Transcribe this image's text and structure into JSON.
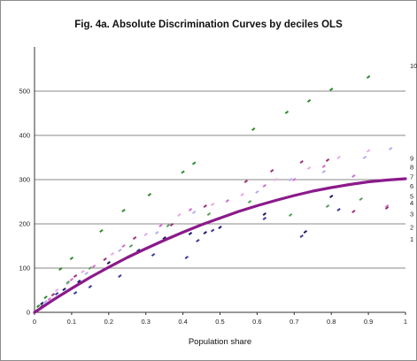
{
  "chart_data": {
    "type": "scatter",
    "title": "Fig. 4a. Absolute Discrimination Curves by deciles OLS",
    "xlabel": "Population share",
    "ylabel": "",
    "xlim": [
      0,
      1
    ],
    "ylim": [
      0,
      600
    ],
    "x_ticks": [
      "0",
      "0.1",
      "0.2",
      "0.3",
      "0.4",
      "0.5",
      "0.6",
      "0.7",
      "0.8",
      "0.9",
      "1"
    ],
    "y_ticks": [
      "0",
      "100",
      "200",
      "300",
      "400",
      "500"
    ],
    "grid": "horizontal",
    "curve_labels": [
      {
        "label": "10",
        "y": 557
      },
      {
        "label": "9",
        "y": 348
      },
      {
        "label": "8",
        "y": 328
      },
      {
        "label": "7",
        "y": 306
      },
      {
        "label": "6",
        "y": 285
      },
      {
        "label": "5",
        "y": 262
      },
      {
        "label": "4",
        "y": 247
      },
      {
        "label": "3",
        "y": 222
      },
      {
        "label": "2",
        "y": 192
      },
      {
        "label": "1",
        "y": 165
      }
    ],
    "average_curve": {
      "color": "#8b1a8b",
      "x": [
        0,
        0.05,
        0.1,
        0.15,
        0.2,
        0.25,
        0.3,
        0.35,
        0.4,
        0.45,
        0.5,
        0.55,
        0.6,
        0.65,
        0.7,
        0.75,
        0.8,
        0.85,
        0.9,
        0.95,
        1.0
      ],
      "y": [
        0,
        28,
        54,
        79,
        102,
        124,
        144,
        163,
        181,
        198,
        213,
        228,
        241,
        253,
        264,
        274,
        282,
        289,
        295,
        299,
        302
      ]
    },
    "series": [
      {
        "color": "#2e8b2e",
        "x": [
          0.01,
          0.03,
          0.07,
          0.1,
          0.18,
          0.24,
          0.31,
          0.4,
          0.43,
          0.59,
          0.68,
          0.74,
          0.8,
          0.9
        ],
        "y": [
          14,
          34,
          98,
          122,
          184,
          230,
          266,
          317,
          337,
          414,
          452,
          478,
          504,
          532
        ]
      },
      {
        "color": "#3b3ba0",
        "x": [
          0.02,
          0.06,
          0.11,
          0.15,
          0.23,
          0.32,
          0.41,
          0.44,
          0.48,
          0.62,
          0.72,
          0.82
        ],
        "y": [
          14,
          42,
          44,
          58,
          82,
          130,
          124,
          162,
          185,
          212,
          172,
          232
        ]
      },
      {
        "color": "#1a1a70",
        "x": [
          0.02,
          0.08,
          0.12,
          0.2,
          0.28,
          0.35,
          0.42,
          0.46,
          0.5,
          0.62,
          0.73,
          0.8
        ],
        "y": [
          20,
          52,
          70,
          112,
          140,
          168,
          178,
          180,
          192,
          222,
          182,
          262
        ]
      },
      {
        "color": "#b0b0ee",
        "x": [
          0.03,
          0.09,
          0.14,
          0.23,
          0.33,
          0.43,
          0.5,
          0.6,
          0.69,
          0.78,
          0.89,
          0.96
        ],
        "y": [
          24,
          66,
          88,
          140,
          180,
          226,
          212,
          272,
          300,
          318,
          350,
          370
        ]
      },
      {
        "color": "#d070d0",
        "x": [
          0.04,
          0.1,
          0.16,
          0.24,
          0.34,
          0.42,
          0.52,
          0.62,
          0.7,
          0.78,
          0.86,
          0.95
        ],
        "y": [
          30,
          74,
          104,
          150,
          196,
          232,
          252,
          286,
          300,
          330,
          308,
          240
        ]
      },
      {
        "color": "#a0307a",
        "x": [
          0.05,
          0.11,
          0.19,
          0.27,
          0.37,
          0.46,
          0.57,
          0.64,
          0.72,
          0.79,
          0.86,
          0.95
        ],
        "y": [
          40,
          82,
          120,
          168,
          198,
          240,
          296,
          320,
          340,
          344,
          228,
          236
        ]
      },
      {
        "color": "#e8a8e8",
        "x": [
          0.06,
          0.13,
          0.21,
          0.3,
          0.39,
          0.48,
          0.56,
          0.65,
          0.74,
          0.82,
          0.9
        ],
        "y": [
          50,
          92,
          132,
          176,
          220,
          244,
          266,
          300,
          326,
          350,
          365
        ]
      },
      {
        "color": "#5aa05a",
        "x": [
          0.09,
          0.15,
          0.26,
          0.36,
          0.47,
          0.58,
          0.69,
          0.79,
          0.88
        ],
        "y": [
          68,
          100,
          150,
          196,
          222,
          250,
          220,
          240,
          256
        ]
      }
    ]
  }
}
